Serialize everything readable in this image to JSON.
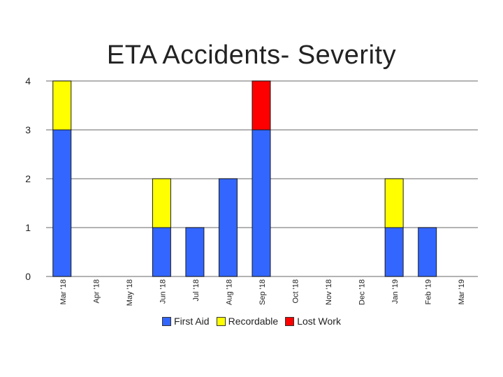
{
  "chart_data": {
    "type": "bar",
    "stacked": true,
    "title": "ETA Accidents- Severity",
    "xlabel": "",
    "ylabel": "",
    "ylim": [
      0,
      4
    ],
    "yticks": [
      0,
      1,
      2,
      3,
      4
    ],
    "grid": true,
    "legend_position": "bottom",
    "categories": [
      "Mar '18",
      "Apr '18",
      "May '18",
      "Jun '18",
      "Jul '18",
      "Aug '18",
      "Sep '18",
      "Oct '18",
      "Nov '18",
      "Dec '18",
      "Jan '19",
      "Feb '19",
      "Mar '19"
    ],
    "series": [
      {
        "name": "First Aid",
        "color": "#3366ff",
        "values": [
          3,
          0,
          0,
          1,
          1,
          2,
          3,
          0,
          0,
          0,
          1,
          1,
          0
        ]
      },
      {
        "name": "Recordable",
        "color": "#ffff00",
        "values": [
          1,
          0,
          0,
          1,
          0,
          0,
          0,
          0,
          0,
          0,
          1,
          0,
          0
        ]
      },
      {
        "name": "Lost Work",
        "color": "#ff0000",
        "values": [
          0,
          0,
          0,
          0,
          0,
          0,
          1,
          0,
          0,
          0,
          0,
          0,
          0
        ]
      }
    ]
  }
}
